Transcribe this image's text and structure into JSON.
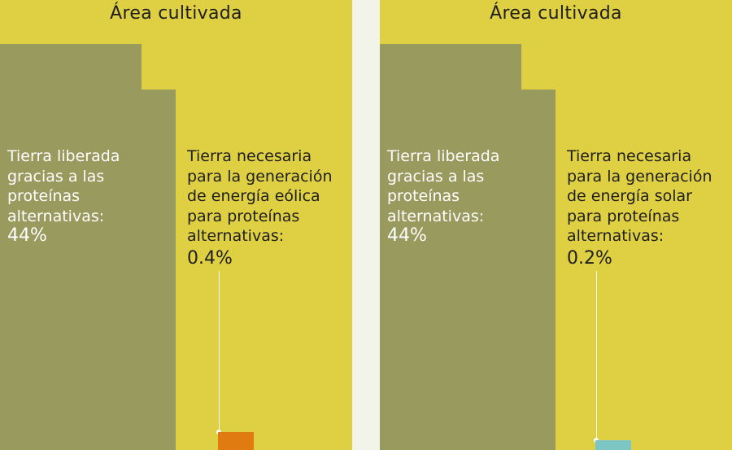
{
  "chart_data": [
    {
      "type": "bar",
      "title": "Área cultivada",
      "series": [
        {
          "name": "Tierra liberada gracias a las proteínas alternativas",
          "value": 44,
          "unit": "%"
        },
        {
          "name": "Tierra necesaria para la generación de energía eólica para proteínas alternativas",
          "value": 0.4,
          "unit": "%"
        }
      ]
    },
    {
      "type": "bar",
      "title": "Área cultivada",
      "series": [
        {
          "name": "Tierra liberada gracias a las proteínas alternativas",
          "value": 44,
          "unit": "%"
        },
        {
          "name": "Tierra necesaria para la generación de energía solar para proteínas alternativas",
          "value": 0.2,
          "unit": "%"
        }
      ]
    }
  ],
  "panels": [
    {
      "title": "Área cultivada",
      "freed_lines": [
        "Tierra liberada",
        "gracias a las",
        "proteínas",
        "alternativas:"
      ],
      "freed_value": "44%",
      "energy_lines": [
        "Tierra necesaria",
        "para la generación",
        "de energía eólica",
        "para proteínas",
        "alternativas:"
      ],
      "energy_value": "0.4%",
      "energy_color": "#e07b12"
    },
    {
      "title": "Área cultivada",
      "freed_lines": [
        "Tierra liberada",
        "gracias a las",
        "proteínas",
        "alternativas:"
      ],
      "freed_value": "44%",
      "energy_lines": [
        "Tierra necesaria",
        "para la generación",
        "de energía solar",
        "para proteínas",
        "alternativas:"
      ],
      "energy_value": "0.2%",
      "energy_color": "#7ec6c4"
    }
  ],
  "colors": {
    "cultivated": "#dfcf42",
    "freed": "#999a5e",
    "separator": "#f2f4ea"
  }
}
